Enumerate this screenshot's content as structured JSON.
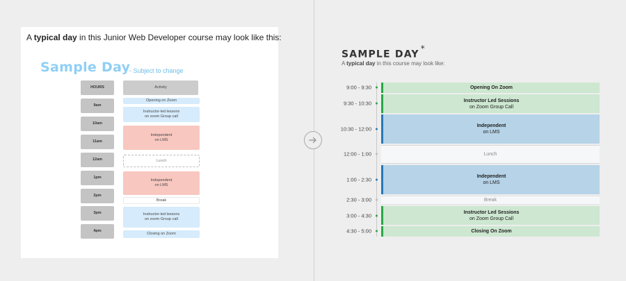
{
  "left": {
    "intro": {
      "pre": "A ",
      "bold": "typical day",
      "post": " in this Junior Web Developer course may look like this:"
    },
    "title": "Sample Day",
    "subtitle": "- Subject to change",
    "hours_header": "HOURS",
    "activity_header": "Activity",
    "hours": [
      "9am",
      "10am",
      "11am",
      "12am",
      "1pm",
      "2pm",
      "3pm",
      "4pm"
    ],
    "activities": [
      {
        "line1": "Opening on Zoom",
        "line2": "",
        "color": "#d6ebfb"
      },
      {
        "line1": "Instructor-led lessons",
        "line2": "on zoom Group call",
        "color": "#d6ebfb"
      },
      {
        "line1": "Independent",
        "line2": "on LMS",
        "color": "#f8c7c0"
      },
      {
        "line1": "Lunch",
        "line2": "",
        "color": "#ffffff"
      },
      {
        "line1": "Independent",
        "line2": "on LMS",
        "color": "#f8c7c0"
      },
      {
        "line1": "Break",
        "line2": "",
        "color": "#ffffff"
      },
      {
        "line1": "Instructor-led lessons",
        "line2": "on zoom Group call",
        "color": "#d6ebfb"
      },
      {
        "line1": "Closing on Zoom",
        "line2": "",
        "color": "#d6ebfb"
      }
    ]
  },
  "right": {
    "title": "SAMPLE DAY",
    "title_mark": "*",
    "subtitle": {
      "pre": "A ",
      "bold": "typical day",
      "post": " in this course may look like:"
    },
    "schedule": [
      {
        "time": "9:00 - 9:30",
        "title": "Opening On Zoom",
        "sub": "",
        "kind": "zoom",
        "color": "#cde7d0"
      },
      {
        "time": "9:30 - 10:30",
        "title": "Instructor Led Sessions",
        "sub": "on Zoom Group Call",
        "kind": "zoom",
        "color": "#cde7d0"
      },
      {
        "time": "10:30 - 12:00",
        "title": "Independent",
        "sub": "on LMS",
        "kind": "lms",
        "color": "#b6d3e7"
      },
      {
        "time": "12:00 - 1:00",
        "title": "Lunch",
        "sub": "",
        "kind": "lunch",
        "color": "#f6f7f9"
      },
      {
        "time": "1:00 - 2:30",
        "title": "Independent",
        "sub": "on LMS",
        "kind": "lms",
        "color": "#b6d3e7"
      },
      {
        "time": "2:30 - 3:00",
        "title": "Break",
        "sub": "",
        "kind": "break",
        "color": "#f6f7f9"
      },
      {
        "time": "3:00 - 4:30",
        "title": "Instructor Led Sessions",
        "sub": "on Zoom Group Call",
        "kind": "zoom",
        "color": "#cde7d0"
      },
      {
        "time": "4:30 - 5:00",
        "title": "Closing On Zoom",
        "sub": "",
        "kind": "zoom",
        "color": "#cde7d0"
      }
    ]
  },
  "colors": {
    "zoom_accent": "#28a745",
    "lms_accent": "#2978b5",
    "old_title": "#8fcff5",
    "background": "#eeeeee"
  },
  "icons": {
    "transition": "arrow-right-circle-icon"
  }
}
